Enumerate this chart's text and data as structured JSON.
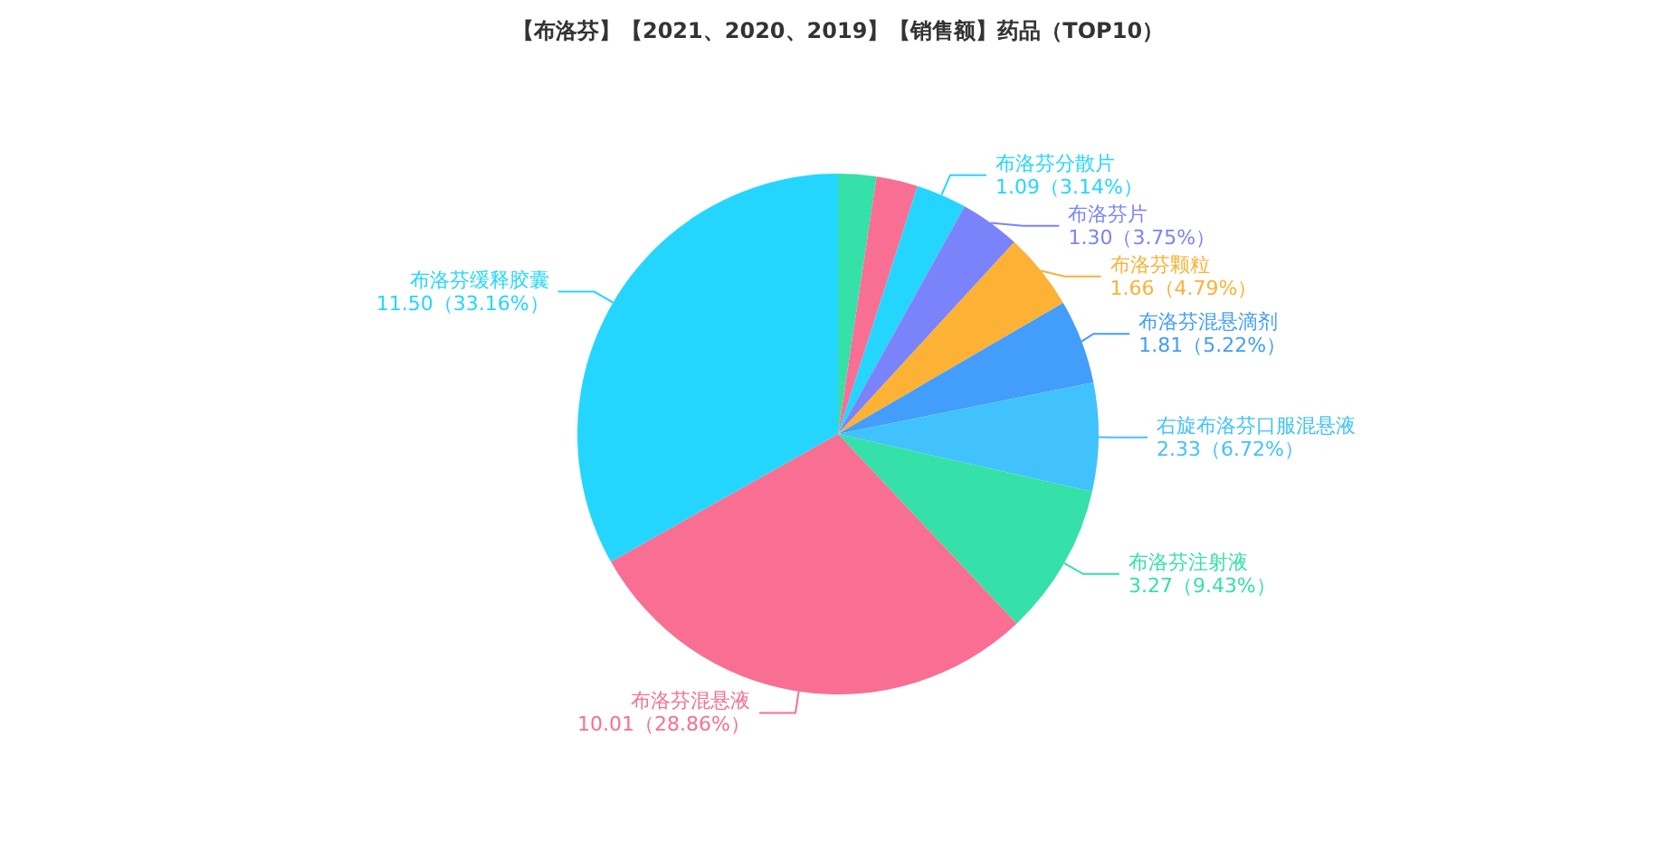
{
  "chart_data": {
    "type": "pie",
    "title": "【布洛芬】【2021、2020、2019】【销售额】药品（TOP10）",
    "categories": [
      null,
      null,
      "布洛芬分散片",
      "布洛芬片",
      "布洛芬颗粒",
      "布洛芬混悬滴剂",
      "右旋布洛芬口服混悬液",
      "布洛芬注射液",
      "布洛芬混悬液",
      "布洛芬缓释胶囊"
    ],
    "values": [
      0.82,
      0.89,
      1.09,
      1.3,
      1.66,
      1.81,
      2.33,
      3.27,
      10.01,
      11.5
    ],
    "value_labels": [
      null,
      null,
      "1.09（3.14%）",
      "1.30（3.75%）",
      "1.66（4.79%）",
      "1.81（5.22%）",
      "2.33（6.72%）",
      "3.27（9.43%）",
      "10.01（28.86%）",
      "11.50（33.16%）"
    ],
    "colors": [
      "#36e0a9",
      "#f86f93",
      "#24d6fd",
      "#7b83fa",
      "#fdb135",
      "#429dfb",
      "#41c2fc",
      "#36e0a9",
      "#f86f93",
      "#24d6fd"
    ],
    "legend": false
  }
}
